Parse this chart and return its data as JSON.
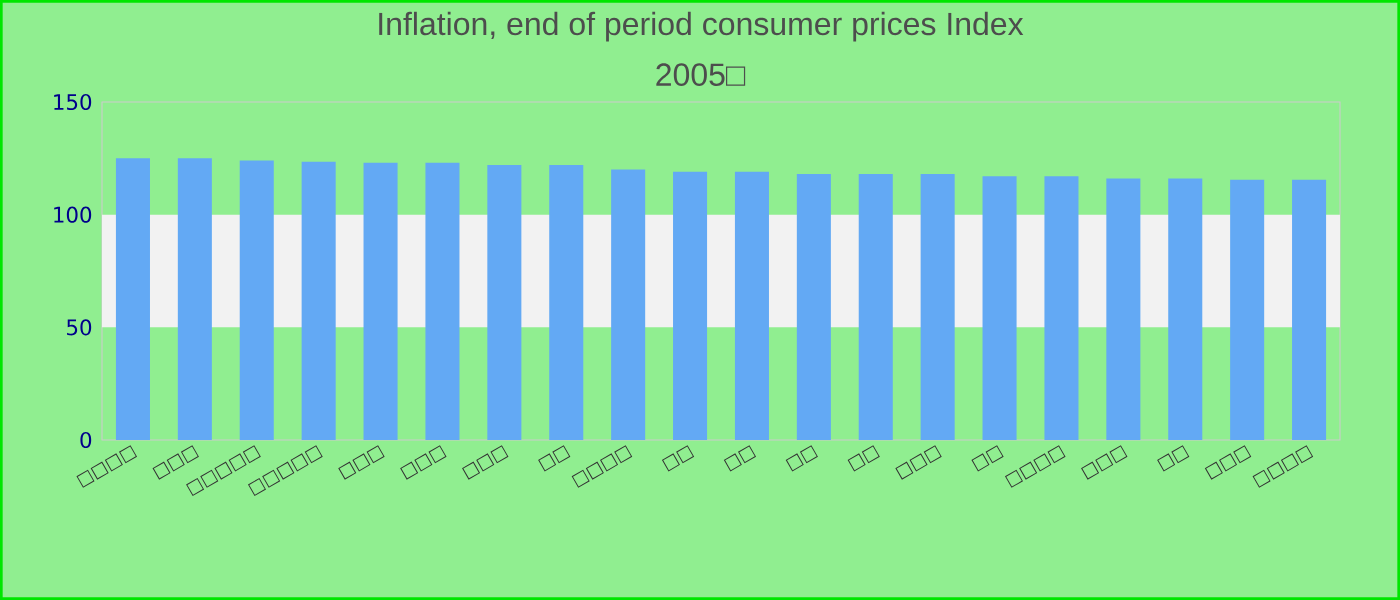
{
  "chart_data": {
    "type": "bar",
    "title": "Inflation, end of period consumer prices  Index",
    "subtitle": "2005□",
    "categories": [
      "□□□□",
      "□□□",
      "□□□□□",
      "□□□□□",
      "□□□",
      "□□□",
      "□□□",
      "□□",
      "□□□□",
      "□□",
      "□□",
      "□□",
      "□□",
      "□□□",
      "□□",
      "□□□□",
      "□□□",
      "□□",
      "□□□",
      "□□□□"
    ],
    "values": [
      125,
      125,
      124,
      123.5,
      123,
      123,
      122,
      122,
      120,
      119,
      119,
      118,
      118,
      118,
      117,
      117,
      116,
      116,
      115.5,
      115.5
    ],
    "color": "#63a9f4",
    "ylim": [
      0,
      150
    ],
    "yticks": [
      0,
      50,
      100,
      150
    ],
    "bands": [
      {
        "axis": "y",
        "from": 50,
        "to": 100,
        "color": "#f2f2f2"
      }
    ]
  }
}
